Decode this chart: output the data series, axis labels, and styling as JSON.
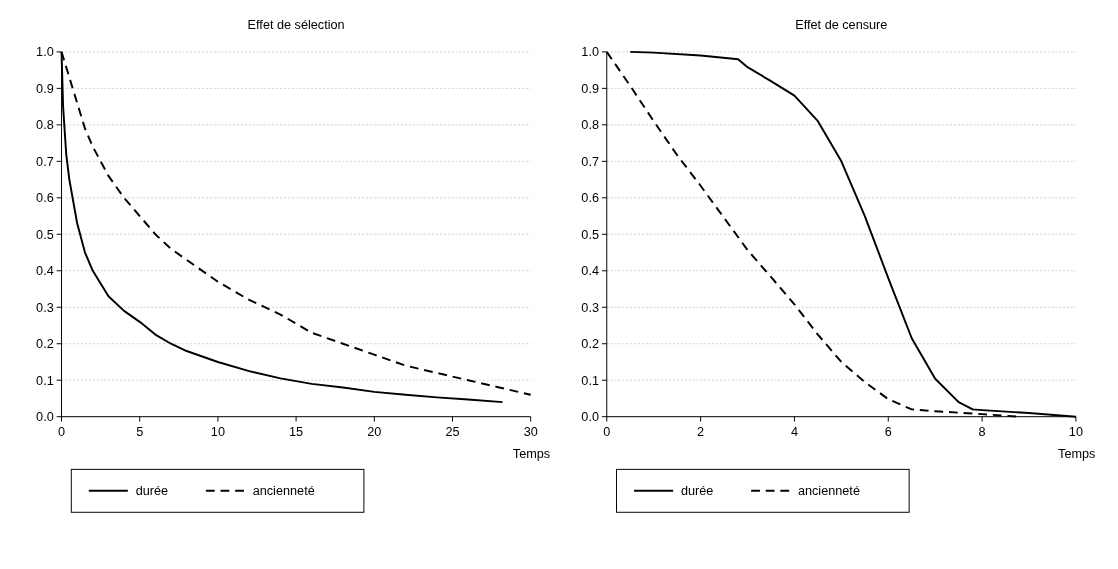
{
  "chart_data": [
    {
      "type": "line",
      "title": "Effet de sélection",
      "xlabel": "Temps",
      "xlim": [
        0,
        30
      ],
      "xticks": [
        0,
        5,
        10,
        15,
        20,
        25,
        30
      ],
      "ylim": [
        0,
        1
      ],
      "yticks": [
        {
          "value": 0,
          "label": "0.0"
        },
        {
          "value": 0.1,
          "label": "0.1"
        },
        {
          "value": 0.2,
          "label": "0.2"
        },
        {
          "value": 0.3,
          "label": "0.3"
        },
        {
          "value": 0.4,
          "label": "0.4"
        },
        {
          "value": 0.5,
          "label": "0.5"
        },
        {
          "value": 0.6,
          "label": "0.6"
        },
        {
          "value": 0.7,
          "label": "0.7"
        },
        {
          "value": 0.8,
          "label": "0.8"
        },
        {
          "value": 0.9,
          "label": "0.9"
        },
        {
          "value": 1,
          "label": "1.0"
        }
      ],
      "grid": "y",
      "legend": "bottom",
      "series": [
        {
          "name": "durée",
          "color": "#000000",
          "line_style": "solid",
          "x": [
            0,
            0.1,
            0.3,
            0.5,
            1,
            1.5,
            2,
            3,
            4,
            5,
            6,
            7,
            8,
            10,
            12,
            14,
            16,
            18,
            20,
            22,
            24,
            26,
            28.2
          ],
          "values": [
            1,
            0.85,
            0.72,
            0.65,
            0.53,
            0.45,
            0.4,
            0.33,
            0.29,
            0.26,
            0.225,
            0.2,
            0.18,
            0.15,
            0.125,
            0.105,
            0.09,
            0.08,
            0.068,
            0.06,
            0.053,
            0.047,
            0.04
          ]
        },
        {
          "name": "ancienneté",
          "color": "#000000",
          "line_style": "dashed",
          "x": [
            0,
            0.5,
            1,
            1.5,
            2,
            3,
            4,
            5,
            6,
            7,
            8,
            10,
            12,
            14,
            16,
            18,
            20,
            22,
            24,
            26,
            28,
            30
          ],
          "values": [
            1,
            0.93,
            0.86,
            0.79,
            0.74,
            0.66,
            0.6,
            0.55,
            0.5,
            0.46,
            0.43,
            0.37,
            0.32,
            0.28,
            0.23,
            0.2,
            0.17,
            0.14,
            0.12,
            0.1,
            0.08,
            0.06
          ]
        }
      ]
    },
    {
      "type": "line",
      "title": "Effet de censure",
      "xlabel": "Temps",
      "xlim": [
        0,
        10
      ],
      "xticks": [
        0,
        2,
        4,
        6,
        8,
        10
      ],
      "ylim": [
        0,
        1
      ],
      "yticks": [
        {
          "value": 0,
          "label": "0.0"
        },
        {
          "value": 0.1,
          "label": "0.1"
        },
        {
          "value": 0.2,
          "label": "0.2"
        },
        {
          "value": 0.3,
          "label": "0.3"
        },
        {
          "value": 0.4,
          "label": "0.4"
        },
        {
          "value": 0.5,
          "label": "0.5"
        },
        {
          "value": 0.6,
          "label": "0.6"
        },
        {
          "value": 0.7,
          "label": "0.7"
        },
        {
          "value": 0.8,
          "label": "0.8"
        },
        {
          "value": 0.9,
          "label": "0.9"
        },
        {
          "value": 1,
          "label": "1.0"
        }
      ],
      "grid": "y",
      "legend": "bottom",
      "series": [
        {
          "name": "durée",
          "color": "#000000",
          "line_style": "solid",
          "x": [
            0.5,
            1,
            2,
            2.8,
            3,
            3.5,
            4,
            4.5,
            5,
            5.5,
            6,
            6.5,
            7,
            7.5,
            7.8,
            8,
            9,
            10
          ],
          "values": [
            1,
            0.998,
            0.99,
            0.98,
            0.958,
            0.92,
            0.88,
            0.81,
            0.7,
            0.55,
            0.38,
            0.215,
            0.104,
            0.04,
            0.02,
            0.018,
            0.01,
            0
          ]
        },
        {
          "name": "ancienneté",
          "color": "#000000",
          "line_style": "dashed",
          "x": [
            0,
            0.5,
            1,
            1.5,
            2,
            2.5,
            3,
            3.5,
            4,
            4.5,
            5,
            5.5,
            6,
            6.5,
            7,
            8,
            8.8
          ],
          "values": [
            1,
            0.907,
            0.81,
            0.717,
            0.633,
            0.545,
            0.457,
            0.383,
            0.308,
            0.225,
            0.15,
            0.095,
            0.048,
            0.02,
            0.015,
            0.007,
            0
          ]
        }
      ]
    }
  ]
}
